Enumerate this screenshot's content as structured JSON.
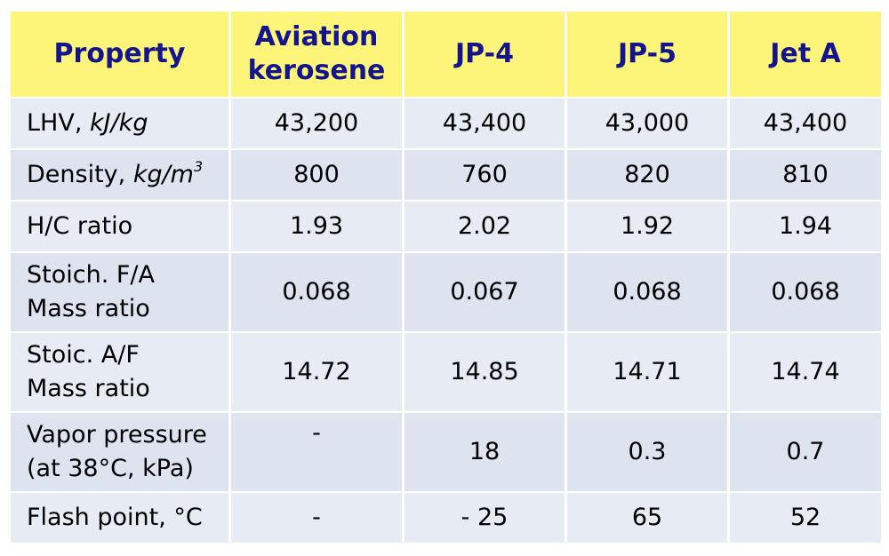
{
  "header": {
    "property": "Property",
    "col1_line1": "Aviation",
    "col1_line2": "kerosene",
    "col2": "JP-4",
    "col3": "JP-5",
    "col4": "Jet A"
  },
  "rows": [
    {
      "label_plain": "LHV, ",
      "label_italic": "kJ/kg",
      "values": [
        "43,200",
        "43,400",
        "43,000",
        "43,400"
      ]
    },
    {
      "label_plain": "Density, ",
      "label_italic": "kg/m",
      "label_sup": "3",
      "values": [
        "800",
        "760",
        "820",
        "810"
      ]
    },
    {
      "label": "H/C ratio",
      "values": [
        "1.93",
        "2.02",
        "1.92",
        "1.94"
      ]
    },
    {
      "label_line1": "Stoich. F/A",
      "label_line2": "Mass ratio",
      "values": [
        "0.068",
        "0.067",
        "0.068",
        "0.068"
      ]
    },
    {
      "label_line1": "Stoic. A/F",
      "label_line2": "Mass ratio",
      "values": [
        "14.72",
        "14.85",
        "14.71",
        "14.74"
      ]
    },
    {
      "label_line1": "Vapor pressure",
      "label_line2": "(at 38°C, kPa)",
      "values": [
        "-",
        "18",
        "0.3",
        "0.7"
      ]
    },
    {
      "label": "Flash point, °C",
      "values": [
        "-",
        "- 25",
        "65",
        "52"
      ]
    }
  ],
  "colors": {
    "header_bg": "#fdf57a",
    "header_text": "#14148c",
    "row_bg": "#dde4f0",
    "row_bg_alt": "#e6ebf4"
  }
}
